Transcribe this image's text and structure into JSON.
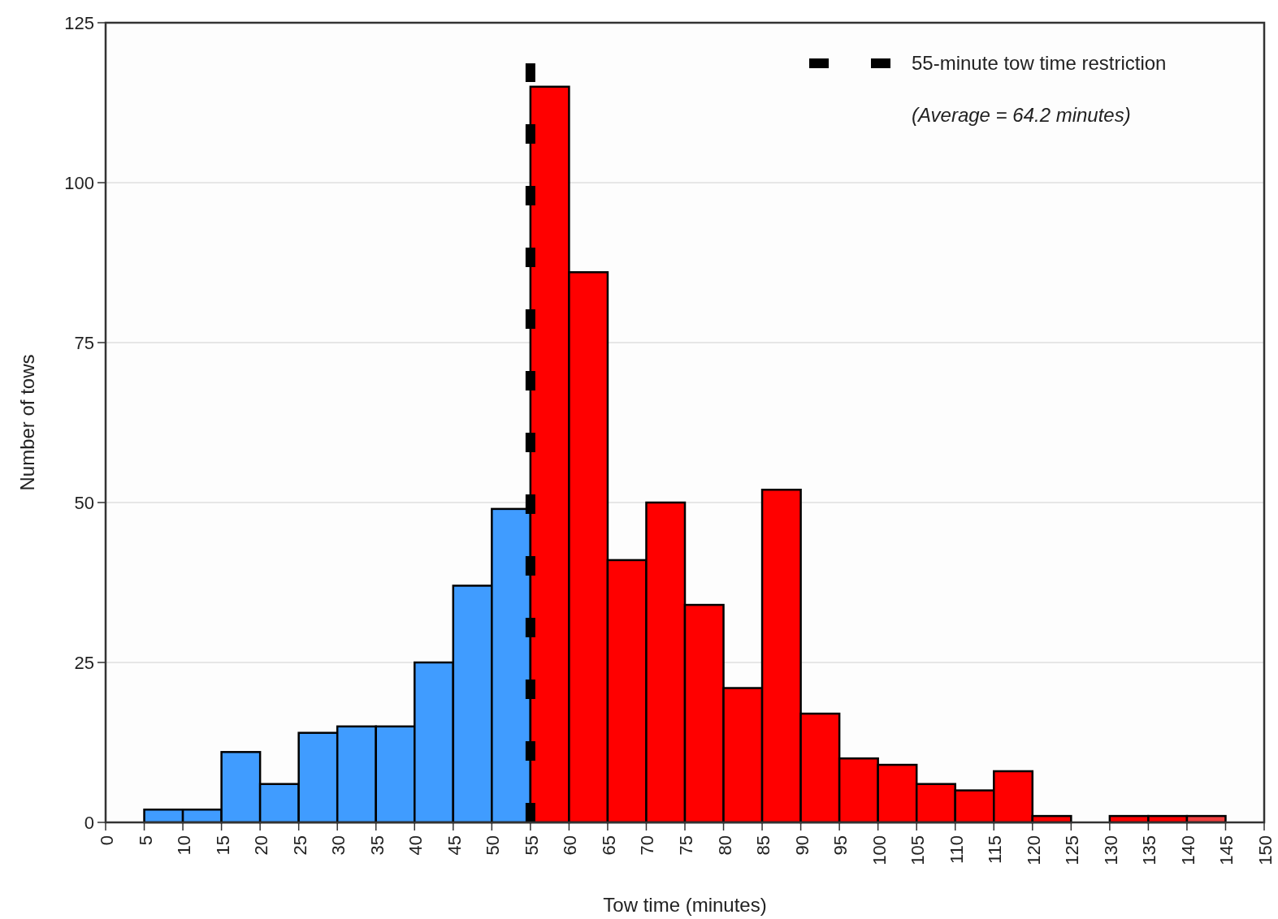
{
  "chart_data": {
    "type": "histogram",
    "xlabel": "Tow time (minutes)",
    "ylabel": "Number of tows",
    "bins": [
      5,
      10,
      15,
      20,
      25,
      30,
      35,
      40,
      45,
      50,
      55,
      60,
      65,
      70,
      75,
      80,
      85,
      90,
      95,
      100,
      105,
      110,
      115,
      120,
      125,
      130,
      135,
      140,
      145
    ],
    "values": [
      2,
      2,
      11,
      6,
      14,
      15,
      15,
      25,
      37,
      49,
      115,
      86,
      41,
      50,
      34,
      21,
      52,
      17,
      10,
      9,
      6,
      5,
      8,
      1,
      0,
      1,
      1,
      1
    ],
    "colors": [
      "#409cff",
      "#409cff",
      "#409cff",
      "#409cff",
      "#409cff",
      "#409cff",
      "#409cff",
      "#409cff",
      "#409cff",
      "#409cff",
      "#ff0000",
      "#ff0000",
      "#ff0000",
      "#ff0000",
      "#ff0000",
      "#ff0000",
      "#ff0000",
      "#ff0000",
      "#ff0000",
      "#ff0000",
      "#ff0000",
      "#ff0000",
      "#ff0000",
      "#ff0000",
      "#ff0000",
      "#ff0000",
      "#ff0000",
      "#f04040"
    ],
    "xlim": [
      0,
      150
    ],
    "xticks": [
      0,
      5,
      10,
      15,
      20,
      25,
      30,
      35,
      40,
      45,
      50,
      55,
      60,
      65,
      70,
      75,
      80,
      85,
      90,
      95,
      100,
      105,
      110,
      115,
      120,
      125,
      130,
      135,
      140,
      145,
      150
    ],
    "ylim": [
      0,
      125
    ],
    "yticks": [
      0,
      25,
      50,
      75,
      100,
      125
    ],
    "grid": "y",
    "legend": "top right",
    "ref_lines": [
      {
        "axis": "x",
        "value": 55,
        "label": "55-minute tow time restriction",
        "color": "#000000",
        "line_style": "dashed"
      }
    ],
    "annotations": [
      "(Average = 64.2 minutes)"
    ]
  }
}
